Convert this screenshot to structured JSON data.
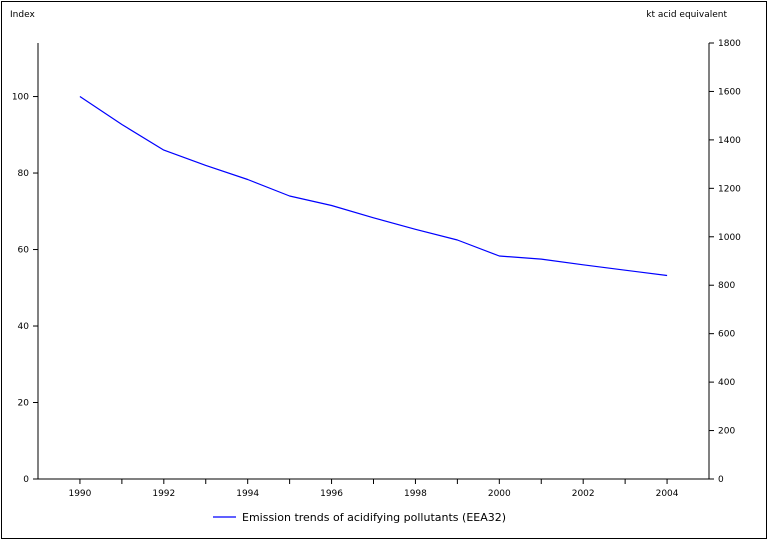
{
  "chart_data": {
    "type": "line",
    "title": "",
    "xlabel": "",
    "ylabel_left": "Index",
    "ylabel_right": "kt acid equivalent",
    "x_ticks": [
      "1990",
      "1992",
      "1994",
      "1996",
      "1998",
      "2000",
      "2002",
      "2004"
    ],
    "x_range": [
      1989,
      2005
    ],
    "y_left_ticks": [
      "0",
      "20",
      "40",
      "60",
      "80",
      "100"
    ],
    "y_left_range": [
      0,
      114
    ],
    "y_right_ticks": [
      "0",
      "200",
      "400",
      "600",
      "800",
      "1000",
      "1200",
      "1400",
      "1600",
      "1800"
    ],
    "y_right_range": [
      0,
      1800
    ],
    "grid": false,
    "legend_position": "bottom",
    "series": [
      {
        "name": "Emission trends of acidifying pollutants (EEA32)",
        "color": "#0000ff",
        "x": [
          1990,
          1991,
          1992,
          1993,
          1994,
          1995,
          1996,
          1997,
          1998,
          1999,
          2000,
          2001,
          2002,
          2003,
          2004
        ],
        "values": [
          100,
          92.7,
          86,
          82,
          78.3,
          74,
          71.5,
          68.3,
          65.3,
          62.5,
          58.3,
          57.5,
          56,
          54.6,
          53.2
        ]
      }
    ]
  }
}
